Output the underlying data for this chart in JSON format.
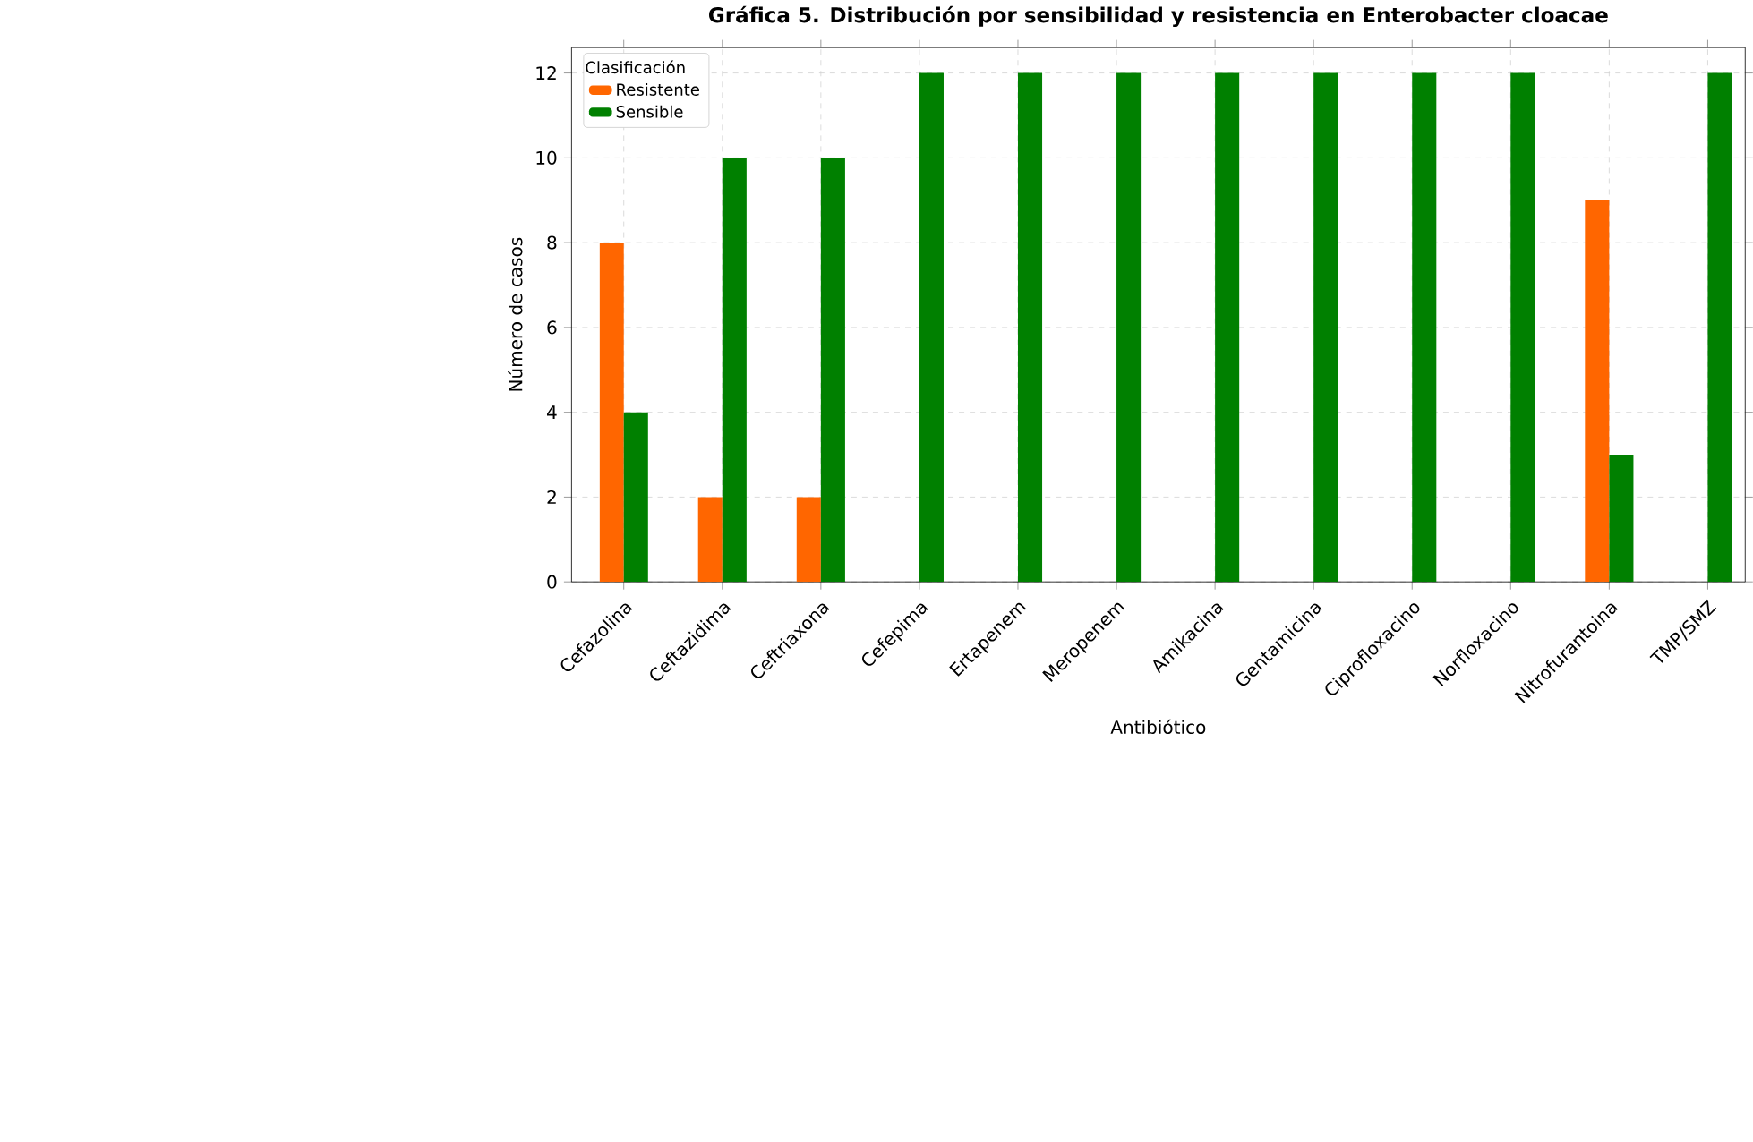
{
  "chart_data": {
    "type": "bar",
    "title": "Gráfica 5. Distribución por sensibilidad y resistencia en Enterobacter cloacae",
    "xlabel": "Antibiótico",
    "ylabel": "Número de casos",
    "legend_title": "Clasificación",
    "categories": [
      "Cefazolina",
      "Ceftazidima",
      "Ceftriaxona",
      "Cefepima",
      "Ertapenem",
      "Meropenem",
      "Amikacina",
      "Gentamicina",
      "Ciprofloxacino",
      "Norfloxacino",
      "Nitrofurantoina",
      "TMP/SMZ"
    ],
    "series": [
      {
        "name": "Resistente",
        "color": "#ff6600",
        "values": [
          8,
          2,
          2,
          0,
          0,
          0,
          0,
          0,
          0,
          0,
          9,
          0
        ]
      },
      {
        "name": "Sensible",
        "color": "#008000",
        "values": [
          4,
          10,
          10,
          12,
          12,
          12,
          12,
          12,
          12,
          12,
          3,
          12
        ]
      }
    ],
    "ylim": [
      0,
      12.6
    ],
    "yticks": [
      0,
      2,
      4,
      6,
      8,
      10,
      12
    ],
    "grid": true,
    "legend": "top left"
  }
}
